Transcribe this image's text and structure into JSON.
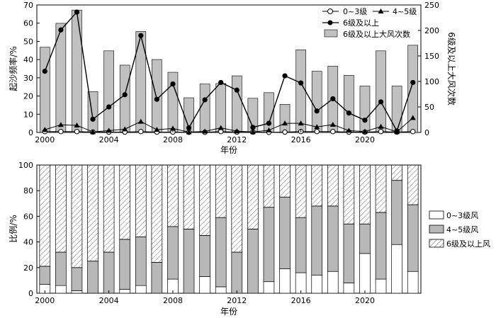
{
  "chart_data": [
    {
      "type": "bar",
      "xlabel": "年份",
      "ylabel": "起沙频率/%",
      "y2label": "6级及以上大风次数",
      "ylim": [
        0,
        70
      ],
      "y2lim": [
        0,
        250
      ],
      "yticks": [
        "0",
        "10",
        "20",
        "30",
        "40",
        "50",
        "60",
        "70"
      ],
      "y2ticks": [
        "0",
        "50",
        "100",
        "150",
        "200",
        "250"
      ],
      "xticks": [
        "2000",
        "2004",
        "2008",
        "2012",
        "2016",
        "2020"
      ],
      "years": [
        2000,
        2001,
        2002,
        2003,
        2004,
        2005,
        2006,
        2007,
        2008,
        2009,
        2010,
        2011,
        2012,
        2013,
        2014,
        2015,
        2016,
        2017,
        2018,
        2019,
        2020,
        2021,
        2022,
        2023
      ],
      "bar_color": "#c0c0c0",
      "series": [
        {
          "name": "0~3级",
          "kind": "line",
          "marker": "open-circle",
          "axis": "left",
          "values": [
            0.5,
            0.5,
            0.5,
            0.2,
            0.2,
            0.2,
            0.5,
            0.2,
            0.2,
            0.1,
            0.1,
            0.5,
            0.2,
            0.2,
            0.1,
            0.2,
            0.5,
            0.5,
            0.5,
            0.2,
            0.2,
            0.5,
            0.2,
            0.5
          ]
        },
        {
          "name": "4~5级",
          "kind": "line",
          "marker": "triangle",
          "axis": "left",
          "values": [
            1.5,
            4.2,
            3.9,
            0.3,
            1.0,
            1.8,
            6.0,
            1.5,
            2.2,
            0.2,
            0.6,
            2.5,
            0.7,
            0.3,
            1.2,
            5.0,
            5.0,
            3.0,
            4.3,
            1.0,
            0.5,
            3.2,
            0.3,
            8.0
          ]
        },
        {
          "name": "6级及以上",
          "kind": "line",
          "marker": "filled-circle",
          "axis": "right",
          "values": [
            120,
            201,
            236,
            26,
            50,
            74,
            190,
            65,
            95,
            9,
            64,
            98,
            83,
            10,
            18,
            111,
            97,
            42,
            66,
            38,
            24,
            60,
            3,
            98
          ]
        },
        {
          "name": "6级及以上大风次数",
          "kind": "bar",
          "axis": "right",
          "values": [
            167,
            214,
            240,
            80,
            160,
            132,
            198,
            143,
            118,
            68,
            95,
            96,
            111,
            67,
            78,
            55,
            162,
            120,
            130,
            112,
            91,
            160,
            91,
            171
          ]
        }
      ]
    },
    {
      "type": "bar",
      "stacked": true,
      "xlabel": "年份",
      "ylabel": "比例/%",
      "ylim": [
        0,
        100
      ],
      "yticks": [
        "0",
        "20",
        "40",
        "60",
        "80",
        "100"
      ],
      "xticks": [
        "2000",
        "2004",
        "2008",
        "2012",
        "2016",
        "2020"
      ],
      "years": [
        2000,
        2001,
        2002,
        2003,
        2004,
        2005,
        2006,
        2007,
        2008,
        2009,
        2010,
        2011,
        2012,
        2013,
        2014,
        2015,
        2016,
        2017,
        2018,
        2019,
        2020,
        2021,
        2022,
        2023
      ],
      "series": [
        {
          "name": "0~3级风",
          "fill": "white",
          "values": [
            7,
            6,
            2,
            0,
            0,
            3,
            6,
            0,
            11,
            0,
            13,
            5,
            0,
            0,
            9,
            19,
            16,
            14,
            17,
            8,
            31,
            11,
            38,
            17
          ]
        },
        {
          "name": "4~5级风",
          "fill": "gray",
          "values": [
            14,
            26,
            18,
            25,
            32,
            39,
            38,
            24,
            41,
            50,
            32,
            54,
            32,
            50,
            58,
            56,
            43,
            54,
            51,
            46,
            23,
            52,
            50,
            52
          ]
        },
        {
          "name": "6级及以上风",
          "fill": "hatch",
          "values": [
            79,
            68,
            80,
            75,
            68,
            58,
            56,
            76,
            48,
            50,
            55,
            41,
            68,
            50,
            33,
            25,
            41,
            32,
            32,
            46,
            46,
            37,
            12,
            31
          ]
        }
      ]
    }
  ]
}
